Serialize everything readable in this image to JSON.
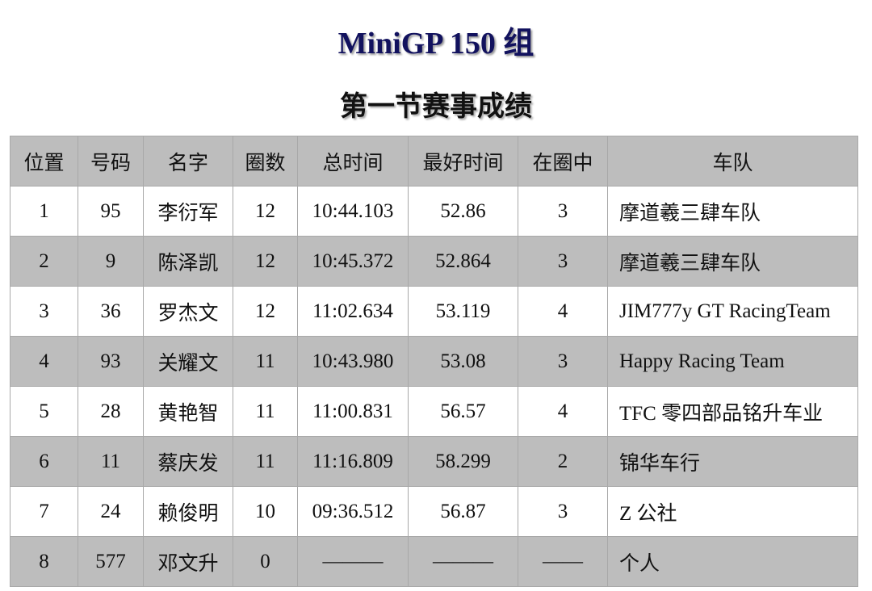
{
  "title": "MiniGP 150 组",
  "subtitle": "第一节赛事成绩",
  "table": {
    "headers": [
      "位置",
      "号码",
      "名字",
      "圈数",
      "总时间",
      "最好时间",
      "在圈中",
      "车队"
    ],
    "rows": [
      [
        "1",
        "95",
        "李衍军",
        "12",
        "10:44.103",
        "52.86",
        "3",
        "摩道羲三肆车队"
      ],
      [
        "2",
        "9",
        "陈泽凯",
        "12",
        "10:45.372",
        "52.864",
        "3",
        "摩道羲三肆车队"
      ],
      [
        "3",
        "36",
        "罗杰文",
        "12",
        "11:02.634",
        "53.119",
        "4",
        "JIM777y GT RacingTeam"
      ],
      [
        "4",
        "93",
        "关耀文",
        "11",
        "10:43.980",
        "53.08",
        "3",
        "Happy Racing Team"
      ],
      [
        "5",
        "28",
        "黄艳智",
        "11",
        "11:00.831",
        "56.57",
        "4",
        "TFC 零四部品铭升车业"
      ],
      [
        "6",
        "11",
        "蔡庆发",
        "11",
        "11:16.809",
        "58.299",
        "2",
        "锦华车行"
      ],
      [
        "7",
        "24",
        "赖俊明",
        "10",
        "09:36.512",
        "56.87",
        "3",
        "Z 公社"
      ],
      [
        "8",
        "577",
        "邓文升",
        "0",
        "———",
        "———",
        "——",
        "个人"
      ]
    ]
  },
  "colors": {
    "title": "#12125e",
    "row_gray": "#bdbdbd"
  }
}
